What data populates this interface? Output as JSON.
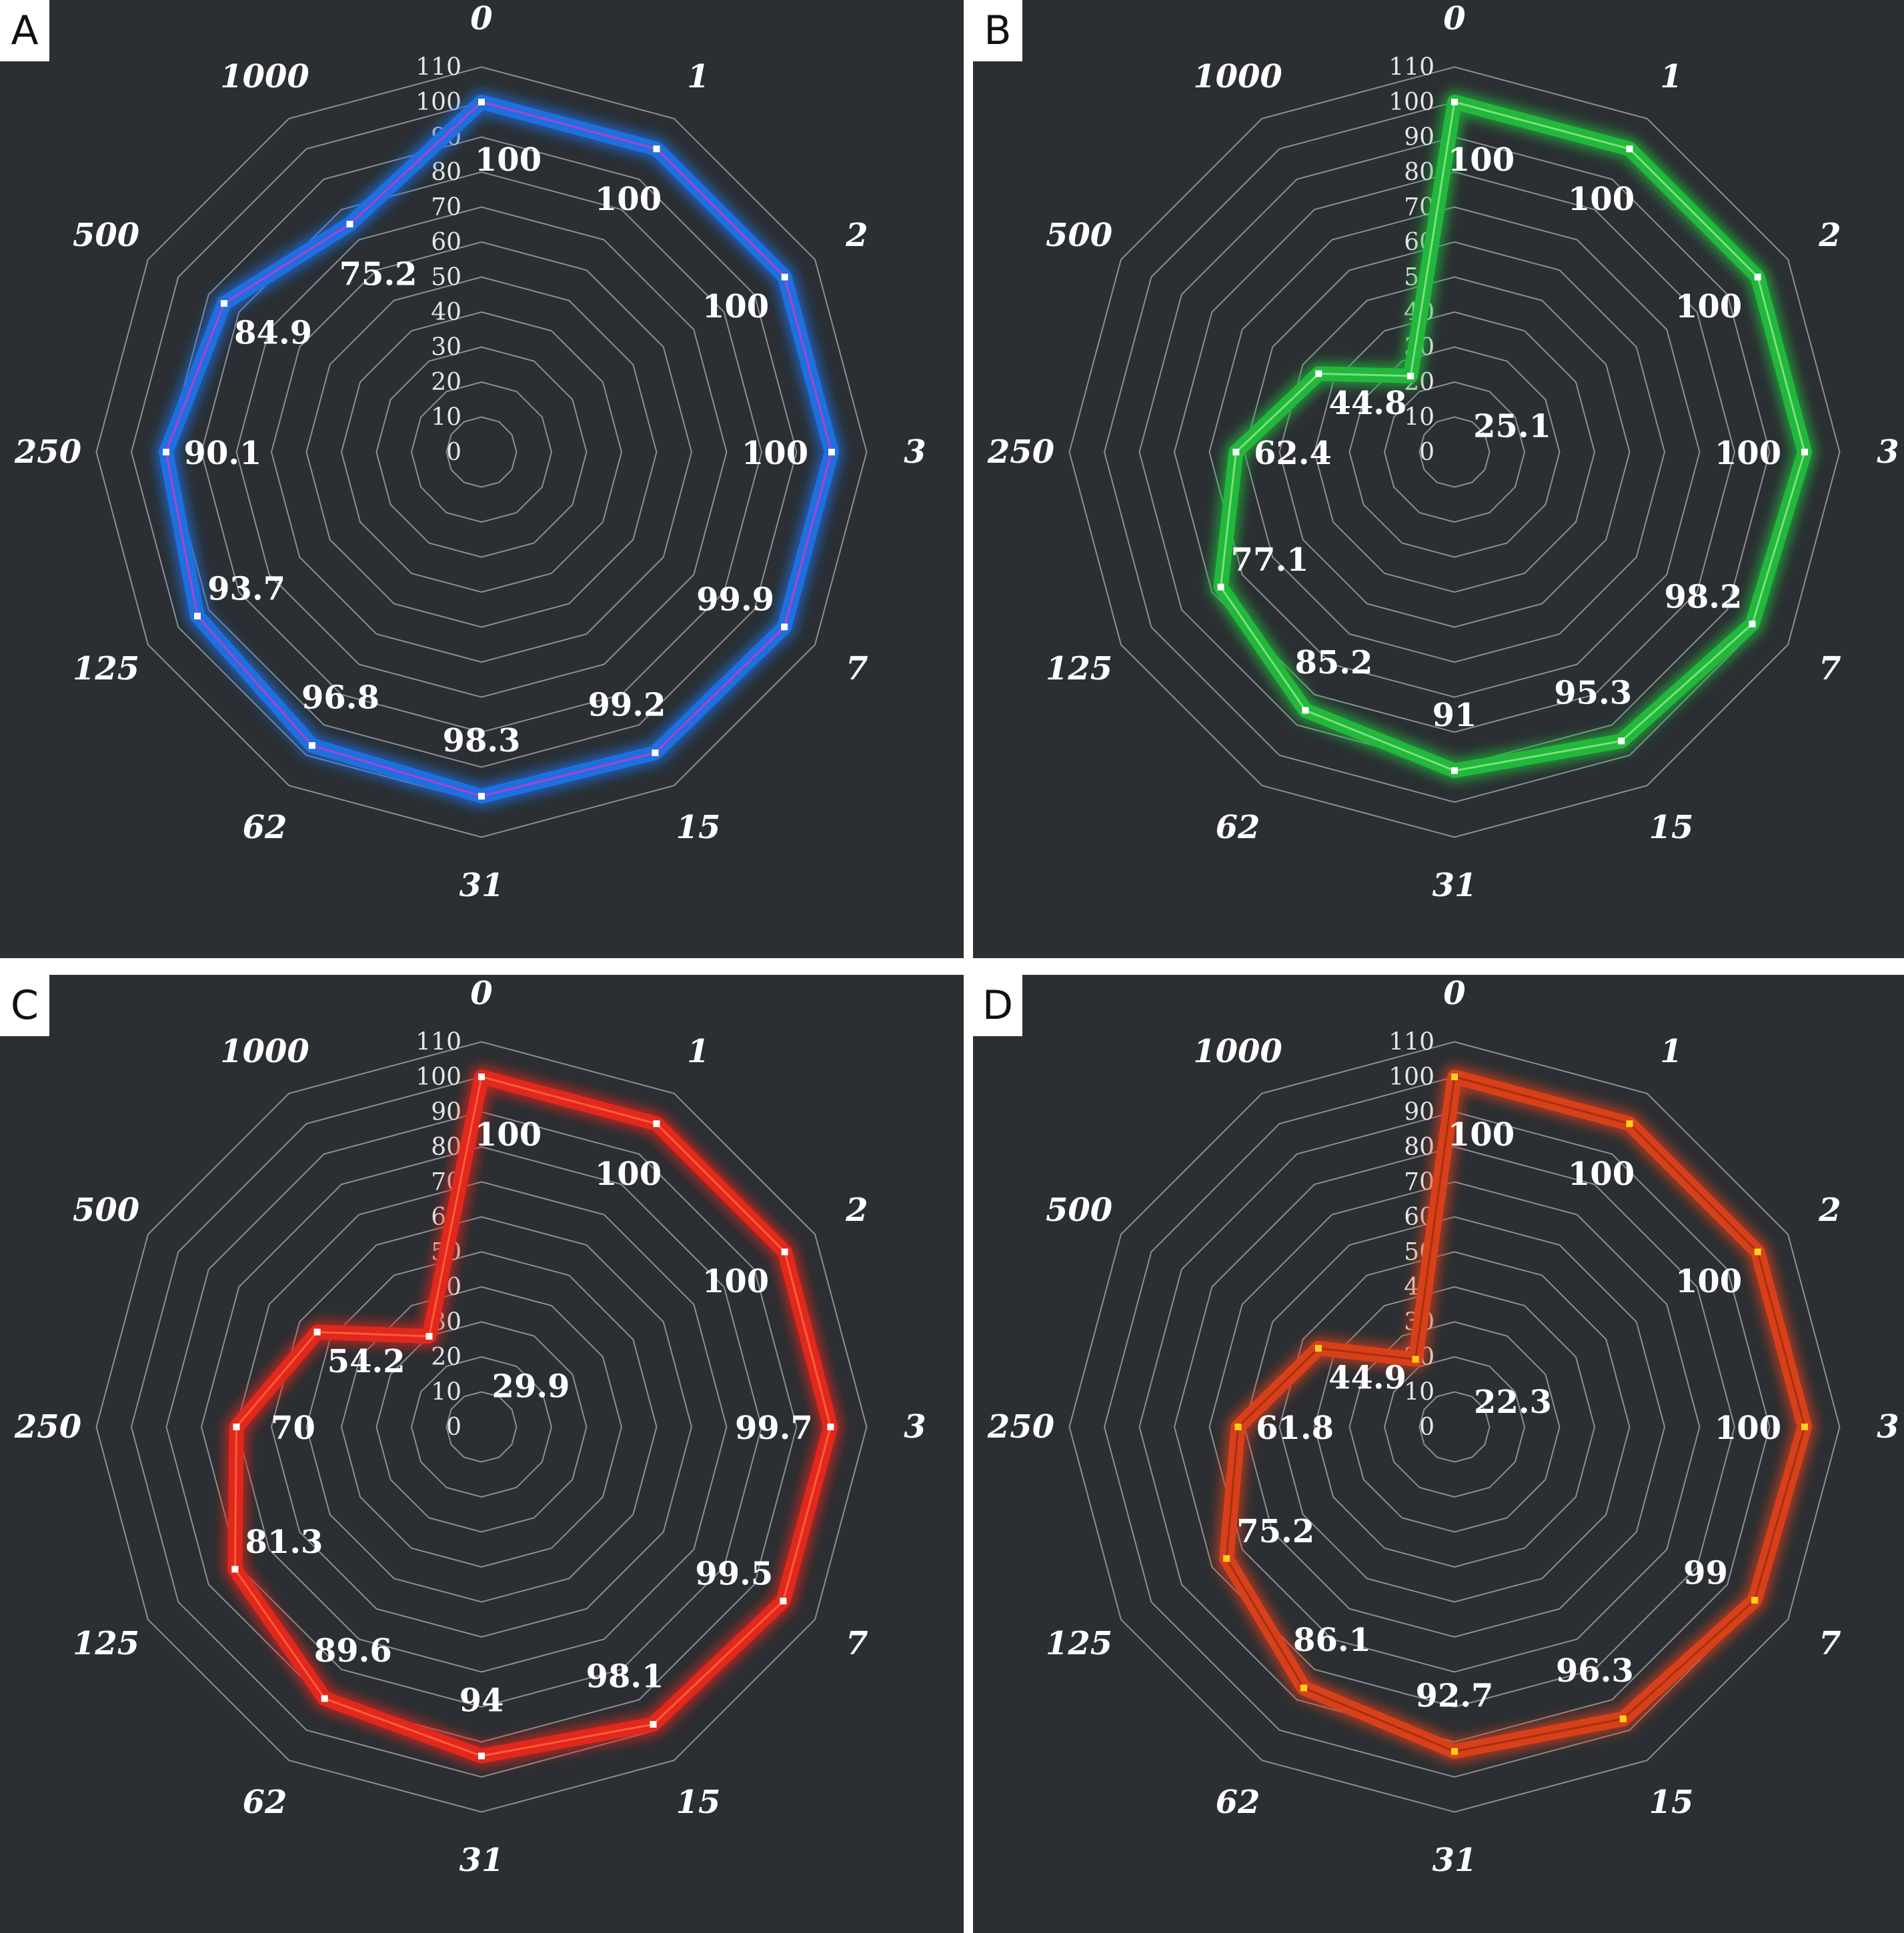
{
  "axis_labels": [
    "0",
    "1",
    "2",
    "3",
    "7",
    "15",
    "31",
    "62",
    "125",
    "250",
    "500",
    "1000"
  ],
  "ring_labels": [
    "0",
    "10",
    "20",
    "30",
    "40",
    "50",
    "60",
    "70",
    "80",
    "90",
    "100",
    "110"
  ],
  "chart_data": [
    {
      "type": "radar",
      "panel": "A",
      "categories": [
        "0",
        "1",
        "2",
        "3",
        "7",
        "15",
        "31",
        "62",
        "125",
        "250",
        "500",
        "1000"
      ],
      "values": [
        100,
        100,
        100,
        100,
        99.9,
        99.2,
        98.3,
        96.8,
        93.7,
        90.1,
        84.9,
        75.2
      ],
      "value_labels": [
        "100",
        "100",
        "100",
        "100",
        "99.9",
        "99.2",
        "98.3",
        "96.8",
        "93.7",
        "90.1",
        "84.9",
        "75.2"
      ],
      "rlim": [
        0,
        110
      ],
      "color": "#1e6fe0",
      "line_color": "#b040d0",
      "marker_color": "#ffffff"
    },
    {
      "type": "radar",
      "panel": "B",
      "categories": [
        "0",
        "1",
        "2",
        "3",
        "7",
        "15",
        "31",
        "62",
        "125",
        "250",
        "500",
        "1000"
      ],
      "values": [
        100,
        100,
        100,
        100,
        98.2,
        95.3,
        91,
        85.2,
        77.1,
        62.4,
        44.8,
        25.1
      ],
      "value_labels": [
        "100",
        "100",
        "100",
        "100",
        "98.2",
        "95.3",
        "91",
        "85.2",
        "77.1",
        "62.4",
        "44.8",
        "25.1"
      ],
      "rlim": [
        0,
        110
      ],
      "color": "#22b83c",
      "line_color": "#7be07f",
      "marker_color": "#ffffff"
    },
    {
      "type": "radar",
      "panel": "C",
      "categories": [
        "0",
        "1",
        "2",
        "3",
        "7",
        "15",
        "31",
        "62",
        "125",
        "250",
        "500",
        "1000"
      ],
      "values": [
        100,
        100,
        100,
        99.7,
        99.5,
        98.1,
        94,
        89.6,
        81.3,
        70,
        54.2,
        29.9
      ],
      "value_labels": [
        "100",
        "100",
        "100",
        "99.7",
        "99.5",
        "98.1",
        "94",
        "89.6",
        "81.3",
        "70",
        "54.2",
        "29.9"
      ],
      "rlim": [
        0,
        110
      ],
      "color": "#e0281c",
      "line_color": "#ff5a3a",
      "marker_color": "#ffffff"
    },
    {
      "type": "radar",
      "panel": "D",
      "categories": [
        "0",
        "1",
        "2",
        "3",
        "7",
        "15",
        "31",
        "62",
        "125",
        "250",
        "500",
        "1000"
      ],
      "values": [
        100,
        100,
        100,
        100,
        99,
        96.3,
        92.7,
        86.1,
        75.2,
        61.8,
        44.9,
        22.3
      ],
      "value_labels": [
        "100",
        "100",
        "100",
        "100",
        "99",
        "96.3",
        "92.7",
        "86.1",
        "75.2",
        "61.8",
        "44.9",
        "22.3"
      ],
      "rlim": [
        0,
        110
      ],
      "color": "#d8401a",
      "line_color": "#a83010",
      "marker_color": "#ffd21a"
    }
  ]
}
